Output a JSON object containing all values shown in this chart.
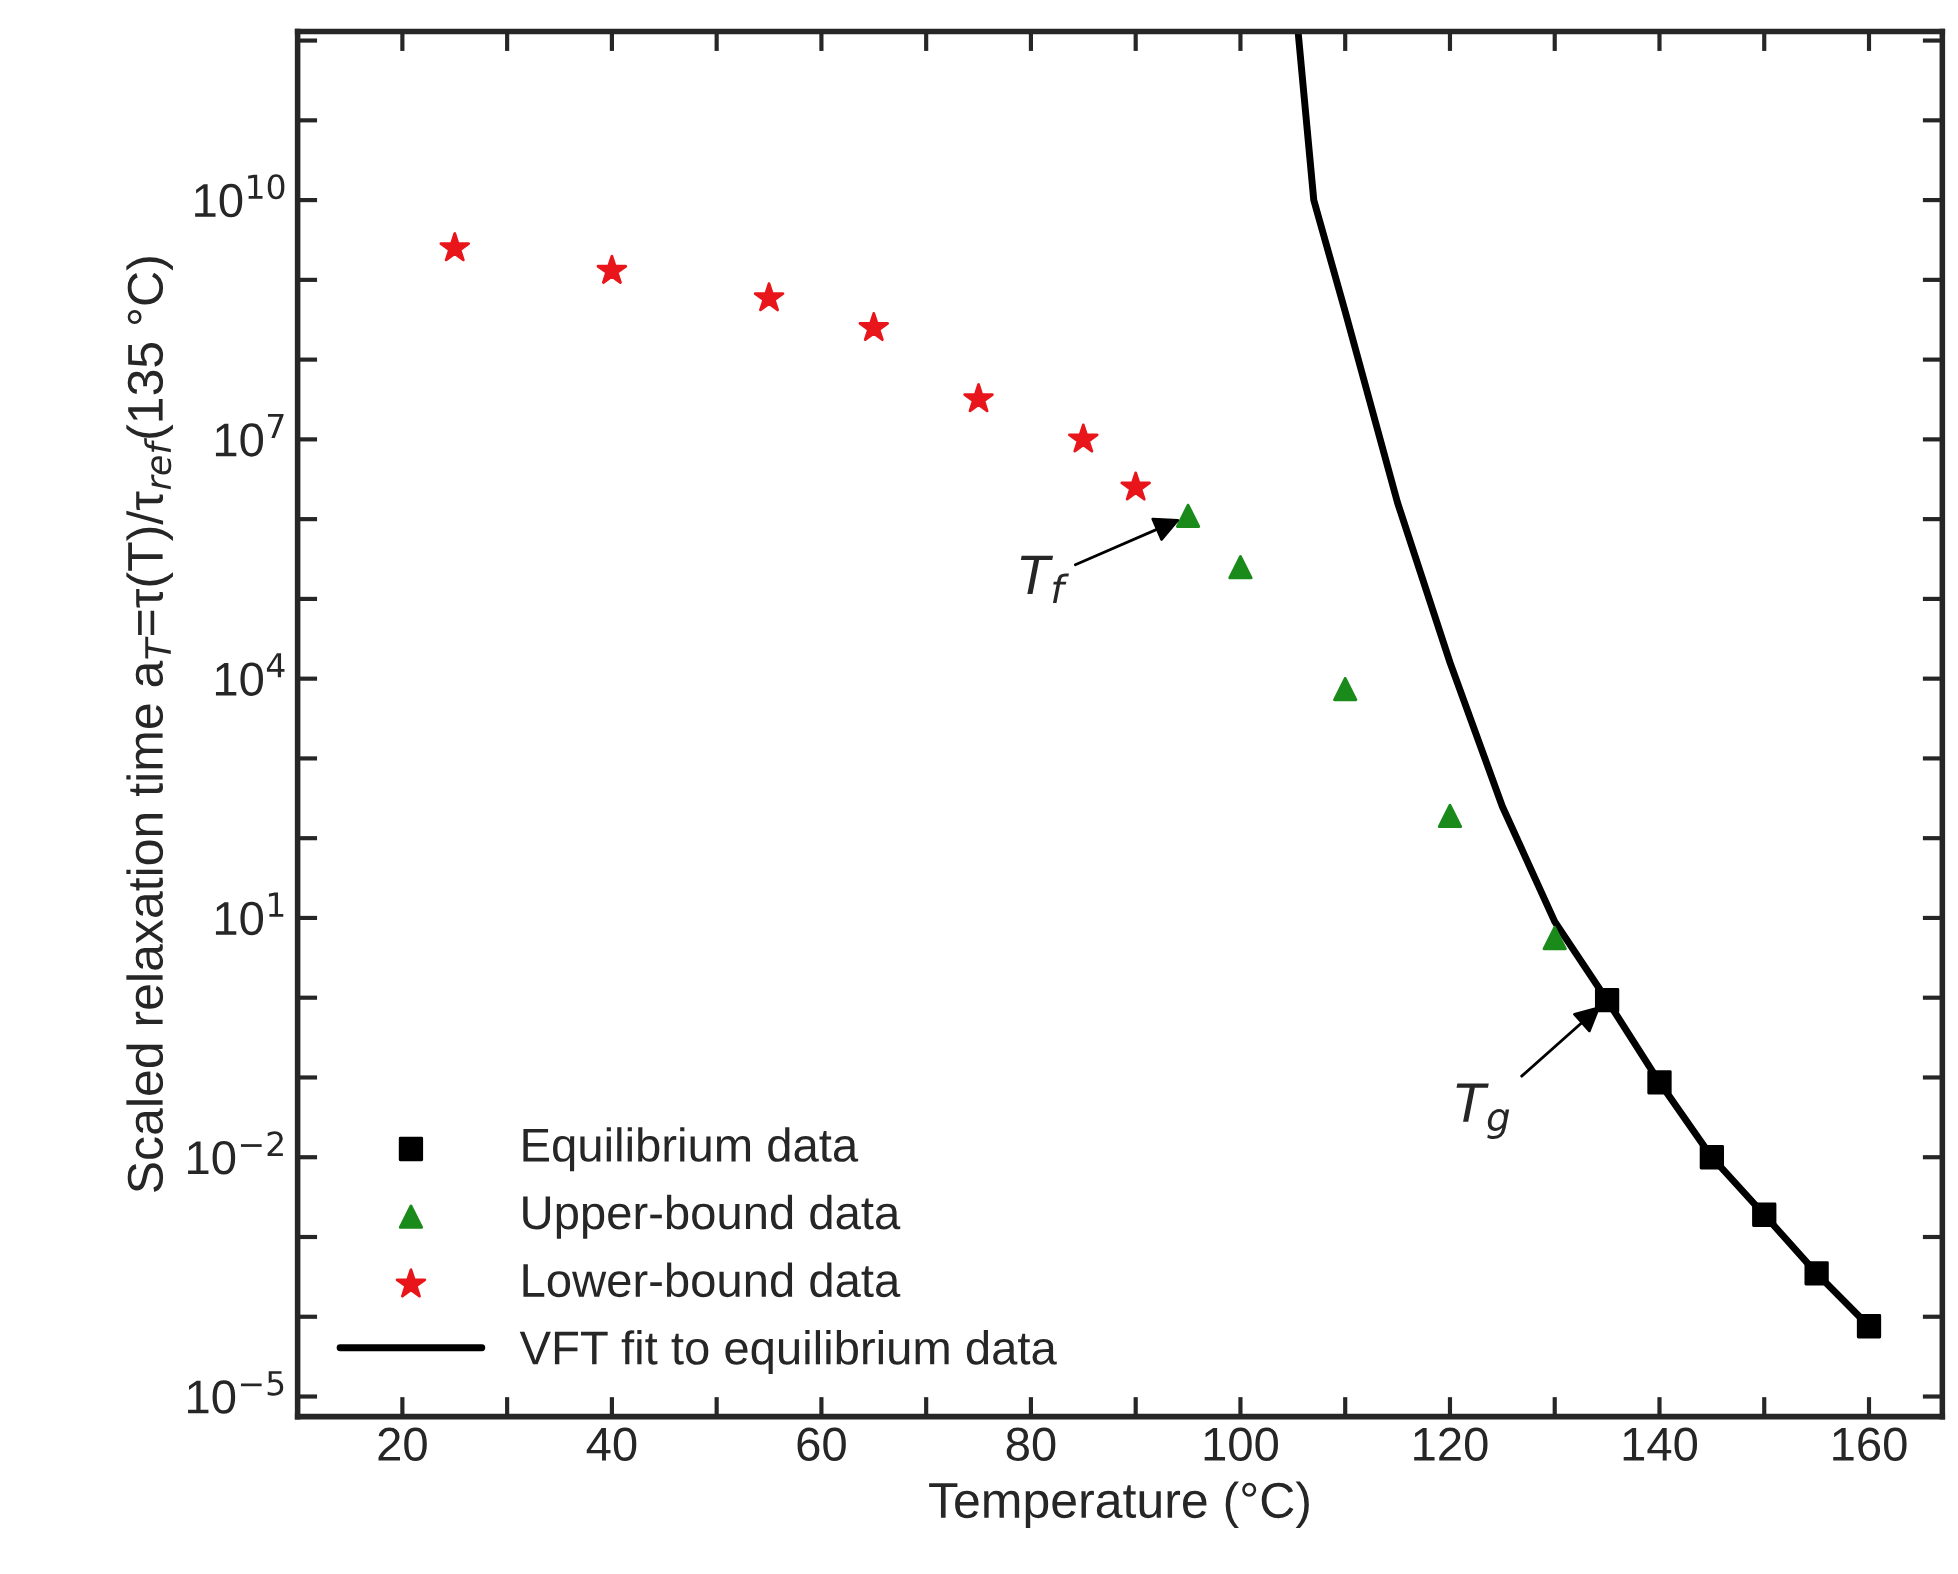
{
  "chart_data": {
    "type": "scatter",
    "xlabel": "Temperature (°C)",
    "ylabel": "Scaled relaxation time a$_{T}$=τ(T)/τ$_{ref}$(135 °C)",
    "log": "y",
    "grid": false,
    "legend": "bottom left",
    "xlim": [
      10,
      167
    ],
    "ylim": [
      5.6e-06,
      1300000000000.0
    ],
    "xticks": [
      {
        "value": 10,
        "label": null
      },
      20,
      {
        "value": 30,
        "label": null
      },
      40,
      {
        "value": 50,
        "label": null
      },
      60,
      {
        "value": 70,
        "label": null
      },
      80,
      {
        "value": 90,
        "label": null
      },
      100,
      {
        "value": 110,
        "label": null
      },
      120,
      {
        "value": 130,
        "label": null
      },
      140,
      {
        "value": 150,
        "label": null
      },
      160
    ],
    "yticks": [
      {
        "value": 1e-05,
        "label": "10$^{−5}$"
      },
      {
        "value": 0.0001,
        "label": null
      },
      {
        "value": 0.001,
        "label": null
      },
      {
        "value": 0.01,
        "label": "10$^{−2}$"
      },
      {
        "value": 0.1,
        "label": null
      },
      {
        "value": 1,
        "label": null
      },
      {
        "value": 10,
        "label": "10$^{1}$"
      },
      {
        "value": 100,
        "label": null
      },
      {
        "value": 1000,
        "label": null
      },
      {
        "value": 10000.0,
        "label": "10$^{4}$"
      },
      {
        "value": 100000.0,
        "label": null
      },
      {
        "value": 1000000.0,
        "label": null
      },
      {
        "value": 10000000.0,
        "label": "10$^{7}$"
      },
      {
        "value": 100000000.0,
        "label": null
      },
      {
        "value": 1000000000.0,
        "label": null
      },
      {
        "value": 10000000000.0,
        "label": "10$^{10}$"
      },
      {
        "value": 100000000000.0,
        "label": null
      },
      {
        "value": 1000000000000.0,
        "label": null
      }
    ],
    "series": [
      {
        "name": "Equilibrium data",
        "marker": "square",
        "color": "#000000",
        "x": [
          135,
          140,
          145,
          150,
          155,
          160
        ],
        "values": [
          0.93,
          0.087,
          0.01,
          0.0019,
          0.00035,
          7.6e-05
        ]
      },
      {
        "name": "Upper-bound data",
        "marker": "triangle",
        "color": "#1a8a1a",
        "x": [
          95,
          100,
          110,
          120,
          130
        ],
        "values": [
          1100000.0,
          250000.0,
          7400,
          190,
          5.6
        ]
      },
      {
        "name": "Lower-bound data",
        "marker": "star",
        "color": "#e8161b",
        "x": [
          25,
          40,
          55,
          65,
          75,
          85,
          90
        ],
        "values": [
          2500000000.0,
          1300000000.0,
          590000000.0,
          250000000.0,
          32000000.0,
          10000000.0,
          2500000.0
        ]
      },
      {
        "name": "VFT fit to equilibrium data",
        "type": "line",
        "marker": "none",
        "line_style": "solid",
        "color": "#000000",
        "x": [
          105.5,
          107,
          110,
          115,
          120,
          125,
          130,
          135,
          140,
          145,
          150,
          155,
          160
        ],
        "values": [
          1300000000000.0,
          10000000000.0,
          400000000.0,
          1600000.0,
          16000.0,
          250,
          9,
          0.93,
          0.087,
          0.01,
          0.0019,
          0.00035,
          7.6e-05
        ]
      }
    ],
    "annotations": [
      {
        "text": "T$_{f}$",
        "x": 95,
        "y": 1100000.0
      },
      {
        "text": "T$_{g}$",
        "x": 135,
        "y": 0.93
      }
    ]
  }
}
